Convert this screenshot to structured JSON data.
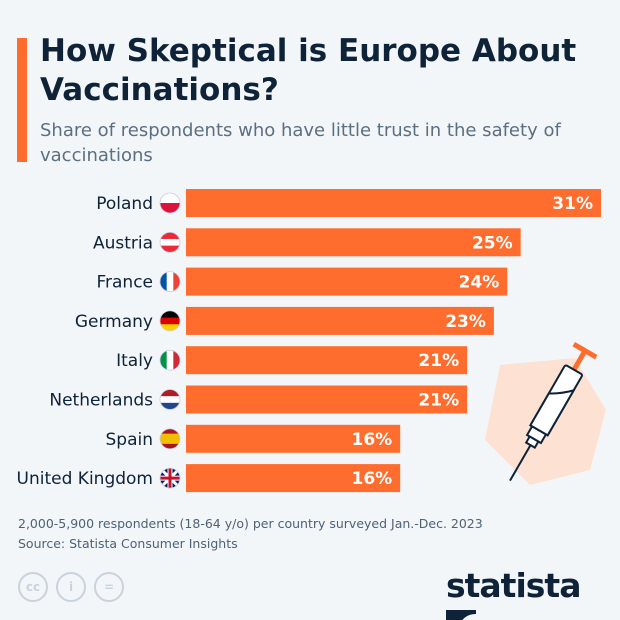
{
  "header": {
    "title": "How Skeptical is Europe About Vaccinations?",
    "subtitle": "Share of respondents who have little trust in the safety of vaccinations"
  },
  "chart_data": {
    "type": "bar",
    "orientation": "horizontal",
    "title": "How Skeptical is Europe About Vaccinations?",
    "subtitle": "Share of respondents who have little trust in the safety of vaccinations",
    "categories": [
      "Poland",
      "Austria",
      "France",
      "Germany",
      "Italy",
      "Netherlands",
      "Spain",
      "United Kingdom"
    ],
    "values": [
      31,
      25,
      24,
      23,
      21,
      21,
      16,
      16
    ],
    "value_labels": [
      "31%",
      "25%",
      "24%",
      "23%",
      "21%",
      "21%",
      "16%",
      "16%"
    ],
    "unit": "%",
    "xlim": [
      0,
      31
    ],
    "grid": false,
    "bar_color": "#ff6d2e"
  },
  "footer": {
    "note": "2,000-5,900 respondents (18-64 y/o) per country surveyed Jan.-Dec. 2023",
    "source": "Source: Statista Consumer Insights",
    "logo": "statista",
    "license_icons": [
      "cc-icon",
      "by-icon",
      "nd-icon"
    ]
  },
  "colors": {
    "accent": "#ff6d2e",
    "title": "#0e2337",
    "background": "#f3f6f9"
  }
}
